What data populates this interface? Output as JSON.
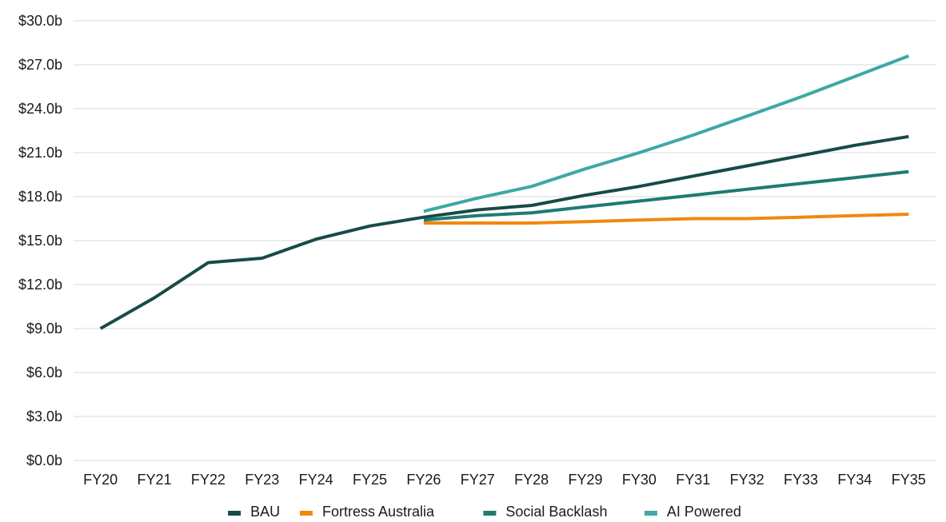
{
  "chart_data": {
    "type": "line",
    "title": "",
    "xlabel": "",
    "ylabel": "",
    "ylim": [
      0,
      30
    ],
    "yticks": [
      "$0.0b",
      "$3.0b",
      "$6.0b",
      "$9.0b",
      "$12.0b",
      "$15.0b",
      "$18.0b",
      "$21.0b",
      "$24.0b",
      "$27.0b",
      "$30.0b"
    ],
    "categories": [
      "FY20",
      "FY21",
      "FY22",
      "FY23",
      "FY24",
      "FY25",
      "FY26",
      "FY27",
      "FY28",
      "FY29",
      "FY30",
      "FY31",
      "FY32",
      "FY33",
      "FY34",
      "FY35"
    ],
    "grid": true,
    "legend_position": "bottom",
    "series": [
      {
        "name": "AI Powered",
        "color": "#3ea8a4",
        "values": [
          null,
          null,
          null,
          null,
          null,
          null,
          17.0,
          17.9,
          18.7,
          19.9,
          21.0,
          22.2,
          23.5,
          24.8,
          26.2,
          27.6
        ]
      },
      {
        "name": "Social Backlash",
        "color": "#1f7a73",
        "values": [
          null,
          null,
          null,
          null,
          null,
          null,
          16.4,
          16.7,
          16.9,
          17.3,
          17.7,
          18.1,
          18.5,
          18.9,
          19.3,
          19.7
        ]
      },
      {
        "name": "Fortress Australia",
        "color": "#f0880f",
        "values": [
          null,
          null,
          null,
          null,
          null,
          null,
          16.2,
          16.2,
          16.2,
          16.3,
          16.4,
          16.5,
          16.5,
          16.6,
          16.7,
          16.8
        ]
      },
      {
        "name": "BAU",
        "color": "#184a47",
        "values": [
          9.0,
          11.1,
          13.5,
          13.8,
          15.1,
          16.0,
          16.6,
          17.1,
          17.4,
          18.1,
          18.7,
          19.4,
          20.1,
          20.8,
          21.5,
          22.1
        ]
      }
    ],
    "legend_order": [
      "BAU",
      "Fortress Australia",
      "Social Backlash",
      "AI Powered"
    ]
  }
}
